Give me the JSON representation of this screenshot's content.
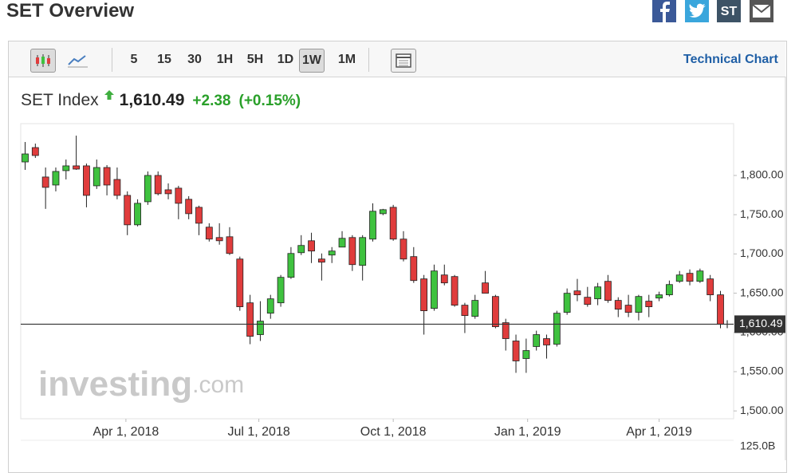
{
  "header": {
    "title": "SET Overview",
    "stocktwits": "ST"
  },
  "toolbar": {
    "intervals": [
      "5",
      "15",
      "30",
      "1H",
      "5H",
      "1D",
      "1W",
      "1M"
    ],
    "selected_interval": "1W",
    "link": "Technical Chart"
  },
  "quote": {
    "name": "SET Index",
    "price": "1,610.49",
    "change": "+2.38",
    "change_pct": "(+0.15%)"
  },
  "chart_data": {
    "type": "candlestick",
    "up_color": "#3fc23f",
    "down_color": "#e03c3c",
    "grid": false,
    "x": [
      "2018-01-22",
      "2018-01-29",
      "2018-02-05",
      "2018-02-12",
      "2018-02-19",
      "2018-02-26",
      "2018-03-05",
      "2018-03-12",
      "2018-03-19",
      "2018-03-26",
      "2018-04-02",
      "2018-04-09",
      "2018-04-16",
      "2018-04-23",
      "2018-04-30",
      "2018-05-07",
      "2018-05-14",
      "2018-05-21",
      "2018-05-28",
      "2018-06-04",
      "2018-06-11",
      "2018-06-18",
      "2018-06-25",
      "2018-07-02",
      "2018-07-09",
      "2018-07-16",
      "2018-07-23",
      "2018-07-30",
      "2018-08-06",
      "2018-08-13",
      "2018-08-20",
      "2018-08-27",
      "2018-09-03",
      "2018-09-10",
      "2018-09-17",
      "2018-09-24",
      "2018-10-01",
      "2018-10-08",
      "2018-10-15",
      "2018-10-22",
      "2018-10-29",
      "2018-11-05",
      "2018-11-12",
      "2018-11-19",
      "2018-11-26",
      "2018-12-03",
      "2018-12-10",
      "2018-12-17",
      "2018-12-24",
      "2018-12-31",
      "2019-01-07",
      "2019-01-14",
      "2019-01-21",
      "2019-01-28",
      "2019-02-04",
      "2019-02-11",
      "2019-02-18",
      "2019-02-25",
      "2019-03-04",
      "2019-03-11",
      "2019-03-18",
      "2019-03-25",
      "2019-04-01",
      "2019-04-08",
      "2019-04-15",
      "2019-04-22",
      "2019-04-29",
      "2019-05-06",
      "2019-05-13"
    ],
    "open": [
      1817.2,
      1835.5,
      1798,
      1787.8,
      1806.1,
      1812.2,
      1812.2,
      1786.8,
      1810.1,
      1794.9,
      1774.6,
      1737.1,
      1766.5,
      1800,
      1781.7,
      1783.8,
      1769.6,
      1759.4,
      1734.1,
      1720.9,
      1721.9,
      1693.5,
      1637.7,
      1597.2,
      1624.5,
      1637.7,
      1670.2,
      1701.6,
      1716.8,
      1693.5,
      1698.6,
      1708.7,
      1720.9,
      1685.4,
      1718.9,
      1751.3,
      1759.4,
      1718.9,
      1696.6,
      1668.2,
      1630.6,
      1673.2,
      1671.2,
      1634.7,
      1620.5,
      1663.1,
      1645.8,
      1612.4,
      1589.1,
      1566.7,
      1582,
      1592.1,
      1585,
      1625.6,
      1652.9,
      1644.8,
      1642.8,
      1665.1,
      1640.8,
      1634.7,
      1625.6,
      1639.8,
      1643.8,
      1647.9,
      1665.1,
      1675.3,
      1665.1,
      1668.2,
      1647.9
    ],
    "high": [
      1842.6,
      1840.6,
      1810.1,
      1810.1,
      1820.3,
      1850.7,
      1815.2,
      1820.3,
      1813.2,
      1810.1,
      1779.7,
      1769.6,
      1805.1,
      1805.1,
      1789.9,
      1786.8,
      1773.6,
      1761.5,
      1739.1,
      1739.1,
      1734.1,
      1696.6,
      1647.9,
      1639.8,
      1647.9,
      1673.2,
      1708.7,
      1723.9,
      1727,
      1700.6,
      1708.7,
      1729,
      1723.9,
      1723.9,
      1764.5,
      1757.4,
      1762.5,
      1729,
      1708.7,
      1673.2,
      1686.4,
      1686.4,
      1673.2,
      1637.7,
      1647.9,
      1678.3,
      1647.9,
      1617.4,
      1597.2,
      1592.1,
      1602.2,
      1597.2,
      1627.6,
      1656,
      1668.2,
      1658,
      1663.1,
      1673.2,
      1644.8,
      1647.9,
      1647.9,
      1647.9,
      1651.9,
      1666.1,
      1678.3,
      1680.3,
      1681.3,
      1673.2,
      1652.9
    ],
    "low": [
      1807.1,
      1822.3,
      1757.4,
      1779.7,
      1794.9,
      1807.1,
      1759.4,
      1782.8,
      1774.6,
      1769.6,
      1723.9,
      1735.1,
      1762.5,
      1774.6,
      1769.6,
      1744.2,
      1744.2,
      1723.9,
      1715.8,
      1711.8,
      1698.6,
      1627.6,
      1585,
      1589.1,
      1617.4,
      1632.7,
      1668.2,
      1698.6,
      1688.4,
      1666.1,
      1688.4,
      1708.7,
      1678.3,
      1666.1,
      1715.8,
      1749.3,
      1716.8,
      1690.5,
      1663.1,
      1597.2,
      1627.6,
      1660,
      1632.7,
      1599.2,
      1617.4,
      1649.9,
      1605.3,
      1576.9,
      1548.5,
      1548.5,
      1576.9,
      1566.7,
      1582,
      1622.5,
      1639.8,
      1632.7,
      1634.7,
      1637.7,
      1619.5,
      1619.5,
      1615.4,
      1619.5,
      1639.8,
      1645.8,
      1663.1,
      1660,
      1663.1,
      1639.8,
      1605.3
    ],
    "close": [
      1827.4,
      1825.4,
      1784.8,
      1805.1,
      1812.2,
      1808.1,
      1774.6,
      1810.1,
      1787.8,
      1774.6,
      1737.1,
      1764.5,
      1800,
      1776.7,
      1776.7,
      1764.5,
      1751.3,
      1739.1,
      1718.9,
      1716.8,
      1700.6,
      1632.7,
      1595.1,
      1614.4,
      1642.8,
      1670.2,
      1700.6,
      1710.8,
      1703.7,
      1689.5,
      1703.7,
      1719.9,
      1686.4,
      1720.9,
      1754.4,
      1756.4,
      1718.9,
      1693.5,
      1666.1,
      1627.6,
      1678.3,
      1663.1,
      1634.7,
      1621.5,
      1640.8,
      1649.9,
      1607.3,
      1592.1,
      1563.7,
      1576.9,
      1597.2,
      1584,
      1624.5,
      1649.9,
      1647.9,
      1635.7,
      1658,
      1640.8,
      1629.6,
      1625.6,
      1645.8,
      1632.7,
      1647.9,
      1661,
      1673.2,
      1665.1,
      1678.3,
      1647.9,
      1610.49
    ],
    "xlim": [
      "2018-01-19",
      "2019-05-22"
    ],
    "xticks": [
      {
        "value": "2018-04-01",
        "label": "Apr 1, 2018"
      },
      {
        "value": "2018-07-01",
        "label": "Jul 1, 2018"
      },
      {
        "value": "2018-10-01",
        "label": "Oct 1, 2018"
      },
      {
        "value": "2019-01-01",
        "label": "Jan 1, 2019"
      },
      {
        "value": "2019-04-01",
        "label": "Apr 1, 2019"
      }
    ],
    "ylim": [
      1490,
      1866
    ],
    "yticks": [
      {
        "value": 1500,
        "label": "1,500.00"
      },
      {
        "value": 1550,
        "label": "1,550.00"
      },
      {
        "value": 1600,
        "label": "1,600.00"
      },
      {
        "value": 1650,
        "label": "1,650.00"
      },
      {
        "value": 1700,
        "label": "1,700.00"
      },
      {
        "value": 1750,
        "label": "1,750.00"
      },
      {
        "value": 1800,
        "label": "1,800.00"
      }
    ],
    "last_price": {
      "value": 1610.49,
      "label": "1,610.49"
    },
    "volume_label": "125.0B",
    "watermark": [
      "investing",
      ".com"
    ]
  }
}
